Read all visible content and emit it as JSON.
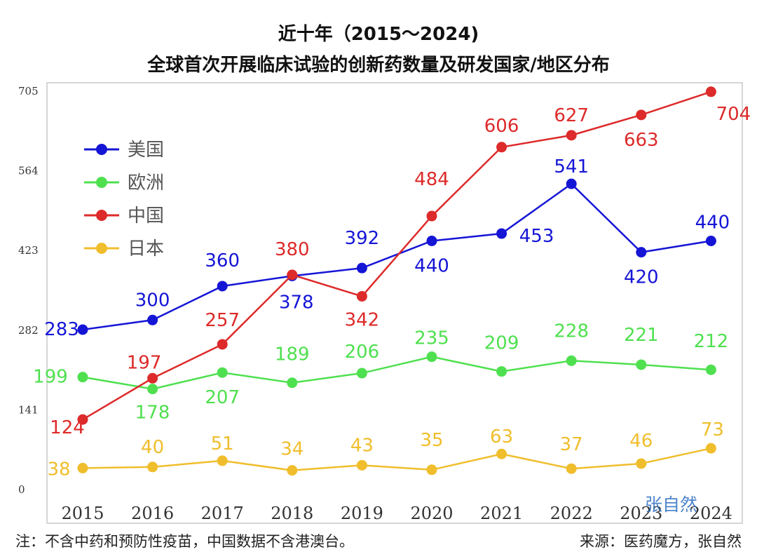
{
  "chart_data": {
    "type": "line",
    "title_line1": "近十年（2015～2024)",
    "title_line2": "全球首次开展临床试验的创新药数量及研发国家/地区分布",
    "x": [
      "2015",
      "2016",
      "2017",
      "2018",
      "2019",
      "2020",
      "2021",
      "2022",
      "2023",
      "2024"
    ],
    "y_ticks": [
      "0",
      "141",
      "282",
      "423",
      "564",
      "705"
    ],
    "ylim": [
      0,
      705
    ],
    "legend_position": "top-left",
    "series": [
      {
        "name": "美国",
        "color": "#1515d6",
        "values": [
          283,
          300,
          360,
          378,
          392,
          440,
          453,
          541,
          420,
          440
        ]
      },
      {
        "name": "欧洲",
        "color": "#4fe04f",
        "values": [
          199,
          178,
          207,
          189,
          206,
          235,
          209,
          228,
          221,
          212
        ]
      },
      {
        "name": "中国",
        "color": "#dd2a2a",
        "values": [
          124,
          197,
          257,
          380,
          342,
          484,
          606,
          627,
          663,
          704
        ]
      },
      {
        "name": "日本",
        "color": "#f0be2c",
        "values": [
          38,
          40,
          51,
          34,
          43,
          35,
          63,
          37,
          46,
          73
        ]
      }
    ]
  },
  "footer": {
    "note": "注：不含中药和预防性疫苗，中国数据不含港澳台。",
    "source": "来源：医药魔方，张自然"
  },
  "watermark": "张自然"
}
